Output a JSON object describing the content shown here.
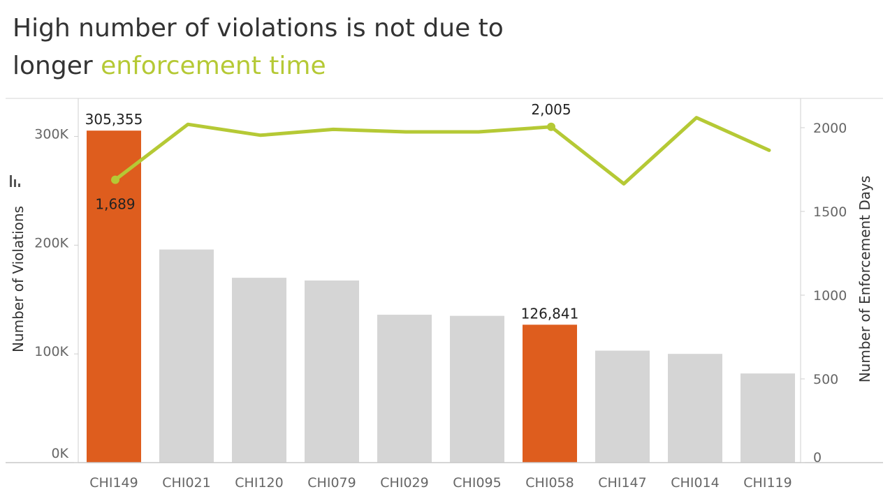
{
  "title": {
    "line1": "High number of violations is not due to",
    "line2_plain": "longer ",
    "line2_highlight": "enforcement time"
  },
  "colors": {
    "highlight_bar": "#de5d1e",
    "default_bar": "#d5d5d5",
    "line": "#b5c935",
    "title_highlight": "#b5c935"
  },
  "chart_data": {
    "type": "bar",
    "combo": "bar + line (dual axis)",
    "categories": [
      "CHI149",
      "CHI021",
      "CHI120",
      "CHI079",
      "CHI029",
      "CHI095",
      "CHI058",
      "CHI147",
      "CHI014",
      "CHI119"
    ],
    "series": [
      {
        "type": "bar",
        "axis": "left",
        "values": [
          305355,
          196000,
          170000,
          167500,
          136000,
          135000,
          126841,
          103000,
          100000,
          82000
        ],
        "highlighted": [
          true,
          false,
          false,
          false,
          false,
          false,
          true,
          false,
          false,
          false
        ]
      },
      {
        "type": "line",
        "axis": "right",
        "values": [
          1689,
          2020,
          1955,
          1990,
          1975,
          1975,
          2005,
          1665,
          2060,
          1865
        ],
        "marked_points": [
          0,
          6
        ]
      }
    ],
    "data_labels": [
      {
        "series": 0,
        "index": 0,
        "text": "305,355"
      },
      {
        "series": 0,
        "index": 6,
        "text": "126,841"
      },
      {
        "series": 1,
        "index": 0,
        "text": "1,689"
      },
      {
        "series": 1,
        "index": 6,
        "text": "2,005"
      }
    ],
    "y_left": {
      "label": "Number of Violations",
      "range": [
        0,
        335000
      ],
      "ticks": [
        0,
        100000,
        200000,
        300000
      ],
      "tick_labels": [
        "0K",
        "100K",
        "200K",
        "300K"
      ]
    },
    "y_right": {
      "label": "Number of Enforcement Days",
      "range": [
        0,
        2175
      ],
      "ticks": [
        0,
        500,
        1000,
        1500,
        2000
      ],
      "tick_labels": [
        "0",
        "500",
        "1000",
        "1500",
        "2000"
      ]
    },
    "grid": false
  }
}
